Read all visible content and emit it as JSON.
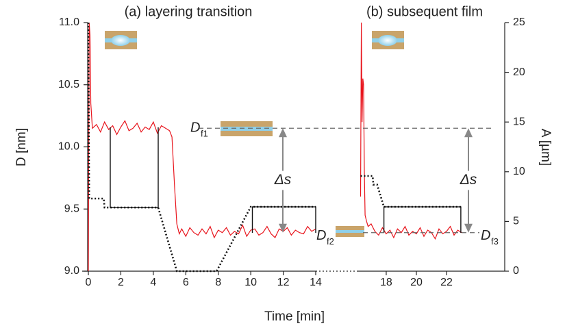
{
  "chart_data": [
    {
      "type": "line",
      "title": "(a) layering transition",
      "ylabel": "D [nm]",
      "xlabel": "Time [min]",
      "xlim": [
        -0.38,
        14
      ],
      "xticks": [
        0,
        2,
        4,
        6,
        8,
        10,
        12,
        14
      ],
      "ylim": [
        9,
        11
      ],
      "yticks": [
        {
          "value": 9,
          "label": "9.0"
        },
        9.5,
        {
          "value": 10,
          "label": "10.0"
        },
        10.5,
        {
          "value": 11,
          "label": "11.0"
        }
      ],
      "y2lim": [
        0,
        25
      ],
      "series": [
        {
          "color": "#e8141c",
          "style": "solid",
          "x": [
            0,
            0.05,
            0.1,
            0.15,
            0.25,
            0.5,
            0.75,
            1,
            1.25,
            1.5,
            1.75,
            2,
            2.25,
            2.5,
            2.75,
            3,
            3.25,
            3.5,
            3.75,
            4,
            4.25,
            4.5,
            4.75,
            5,
            5.15,
            5.3,
            5.45,
            5.6,
            5.75,
            6,
            6.25,
            6.5,
            6.75,
            7,
            7.25,
            7.5,
            7.75,
            8,
            8.25,
            8.5,
            8.75,
            9,
            9.25,
            9.5,
            9.75,
            10,
            10.25,
            10.5,
            10.75,
            11,
            11.25,
            11.5,
            11.75,
            12,
            12.25,
            12.5,
            12.75,
            13,
            13.25,
            13.5,
            13.75,
            14
          ],
          "values": [
            9.0,
            11.0,
            10.9,
            10.35,
            10.15,
            10.18,
            10.12,
            10.2,
            10.14,
            10.17,
            10.1,
            10.16,
            10.21,
            10.13,
            10.15,
            10.19,
            10.12,
            10.16,
            10.14,
            10.2,
            10.11,
            10.17,
            10.15,
            10.13,
            10.08,
            9.7,
            9.38,
            9.3,
            9.34,
            9.28,
            9.35,
            9.31,
            9.29,
            9.34,
            9.3,
            9.36,
            9.27,
            9.33,
            9.31,
            9.35,
            9.29,
            9.32,
            9.3,
            9.37,
            9.28,
            9.33,
            9.34,
            9.29,
            9.31,
            9.36,
            9.3,
            9.27,
            9.34,
            9.32,
            9.35,
            9.29,
            9.33,
            9.31,
            9.3,
            9.36,
            9.32,
            9.34
          ]
        },
        {
          "color": "#111111",
          "style": "dotted",
          "axis": "y2",
          "x": [
            0,
            0.05,
            0.95,
            1.0,
            4.3,
            5.45,
            7.9,
            10.0,
            14
          ],
          "values": [
            25,
            7.3,
            7.3,
            6.4,
            6.4,
            0,
            0,
            6.47,
            6.47
          ]
        },
        {
          "color": "#111111",
          "style": "solid",
          "axis": "y2",
          "x": [
            1.35,
            1.35,
            4.3,
            4.3
          ],
          "values": [
            14.46,
            6.4,
            6.4,
            14.46
          ]
        },
        {
          "color": "#111111",
          "style": "solid",
          "axis": "y2",
          "x": [
            10.1,
            10.1,
            14,
            14
          ],
          "values": [
            3.86,
            6.47,
            6.47,
            3.86
          ]
        }
      ],
      "levels": [
        {
          "value": 10.15,
          "symbol": "D",
          "sub": "f1",
          "dashed": true
        },
        {
          "value": 9.31,
          "symbol": "D",
          "sub": "f2",
          "dashed": false
        }
      ],
      "step_label": "Δs"
    },
    {
      "type": "line",
      "title": "(b) subsequent film",
      "y2label": "A [µm]",
      "xlim": [
        16.05,
        25.86
      ],
      "xticks": [
        18,
        20,
        22
      ],
      "ylim": [
        9,
        11
      ],
      "y2lim": [
        0,
        25
      ],
      "y2ticks": [
        0,
        5,
        10,
        15,
        20,
        25
      ],
      "series": [
        {
          "color": "#e8141c",
          "style": "solid",
          "x": [
            16.3,
            16.35,
            16.4,
            16.45,
            16.5,
            16.55,
            16.6,
            16.7,
            16.8,
            17,
            17.25,
            17.5,
            17.75,
            18,
            18.25,
            18.5,
            18.75,
            19,
            19.25,
            19.5,
            19.75,
            20,
            20.25,
            20.5,
            20.75,
            21,
            21.25,
            21.5,
            21.75,
            22,
            22.25,
            22.5,
            22.75,
            23
          ],
          "values": [
            9.6,
            11.0,
            10.2,
            10.55,
            10.5,
            9.8,
            9.45,
            9.4,
            9.36,
            9.38,
            9.32,
            9.29,
            9.35,
            9.3,
            9.33,
            9.27,
            9.34,
            9.31,
            9.36,
            9.29,
            9.32,
            9.3,
            9.35,
            9.28,
            9.33,
            9.31,
            9.26,
            9.34,
            9.3,
            9.32,
            9.36,
            9.29,
            9.33,
            9.31
          ]
        },
        {
          "color": "#111111",
          "style": "dotted",
          "axis": "y2",
          "x": [
            16.3,
            17.1,
            17.15,
            17.4,
            17.85,
            22.95
          ],
          "values": [
            9.57,
            9.57,
            8.7,
            8.7,
            6.47,
            6.47
          ]
        },
        {
          "color": "#111111",
          "style": "solid",
          "axis": "y2",
          "x": [
            17.85,
            17.85,
            22.95,
            22.95
          ],
          "values": [
            3.86,
            6.47,
            6.47,
            3.86
          ]
        }
      ],
      "levels": [
        {
          "value": 9.31,
          "symbol": "D",
          "sub": "f3",
          "dashed": true
        }
      ],
      "step_label": "Δs"
    }
  ]
}
